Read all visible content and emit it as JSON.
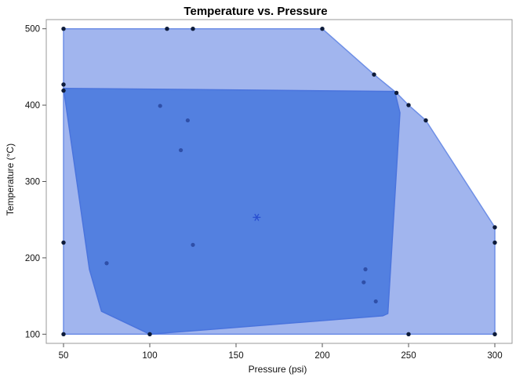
{
  "chart_data": {
    "type": "scatter",
    "title": "Temperature vs. Pressure",
    "xlabel": "Pressure (psi)",
    "ylabel": "Temperature (°C)",
    "xlim": [
      40,
      310
    ],
    "ylim": [
      88,
      512
    ],
    "x_ticks": [
      50,
      100,
      150,
      200,
      250,
      300
    ],
    "y_ticks": [
      100,
      200,
      300,
      400,
      500
    ],
    "x_tick_labels": [
      "50",
      "100",
      "150",
      "200",
      "250",
      "300"
    ],
    "y_tick_labels": [
      "100",
      "200",
      "300",
      "400",
      "500"
    ],
    "grid": false,
    "colors": {
      "outer_fill": "#a1b5ee",
      "outer_stroke": "#6e8fe6",
      "inner_fill": "#5380e0",
      "inner_stroke": "#4a74dd",
      "point": "#0d1b3a",
      "inner_point": "#2f4fa8",
      "centroid": "#2a4fd0"
    },
    "outer_region": [
      [
        50,
        100
      ],
      [
        300,
        100
      ],
      [
        300,
        240
      ],
      [
        260,
        380
      ],
      [
        250,
        400
      ],
      [
        243,
        416
      ],
      [
        230,
        440
      ],
      [
        200,
        500
      ],
      [
        50,
        500
      ]
    ],
    "inner_region": [
      [
        50,
        422
      ],
      [
        242,
        418
      ],
      [
        245,
        390
      ],
      [
        238,
        127
      ],
      [
        235,
        124
      ],
      [
        100,
        100
      ],
      [
        72,
        130
      ],
      [
        65,
        185
      ],
      [
        50,
        422
      ]
    ],
    "points": [
      [
        50,
        500
      ],
      [
        110,
        500
      ],
      [
        125,
        500
      ],
      [
        200,
        500
      ],
      [
        230,
        440
      ],
      [
        50,
        427
      ],
      [
        50,
        419
      ],
      [
        243,
        416
      ],
      [
        250,
        400
      ],
      [
        260,
        380
      ],
      [
        300,
        240
      ],
      [
        50,
        220
      ],
      [
        300,
        220
      ],
      [
        50,
        100
      ],
      [
        100,
        100
      ],
      [
        250,
        100
      ],
      [
        300,
        100
      ]
    ],
    "inner_points": [
      [
        106,
        399
      ],
      [
        122,
        380
      ],
      [
        118,
        341
      ],
      [
        125,
        217
      ],
      [
        75,
        193
      ],
      [
        225,
        185
      ],
      [
        224,
        168
      ],
      [
        231,
        143
      ]
    ],
    "centroid": [
      162,
      253
    ]
  }
}
